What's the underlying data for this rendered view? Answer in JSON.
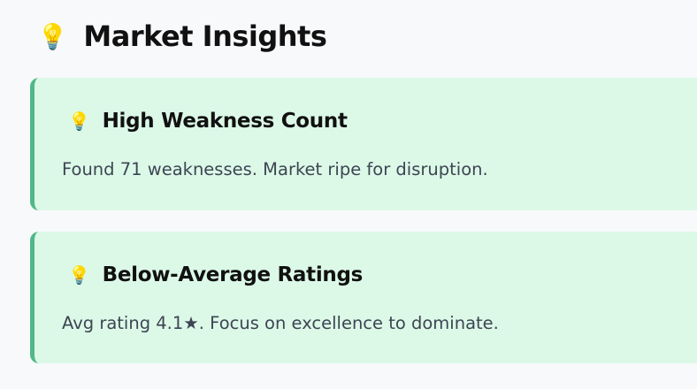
{
  "header": {
    "title": "Market Insights",
    "icon": "lightbulb-icon"
  },
  "insights": [
    {
      "title": "High Weakness Count",
      "text": "Found 71 weaknesses. Market ripe for disruption.",
      "icon": "lightbulb-icon"
    },
    {
      "title": "Below-Average Ratings",
      "text": "Avg rating 4.1★. Focus on excellence to dominate.",
      "icon": "lightbulb-icon"
    }
  ],
  "colors": {
    "card_bg": "#dcf9e8",
    "accent": "#52b788"
  }
}
